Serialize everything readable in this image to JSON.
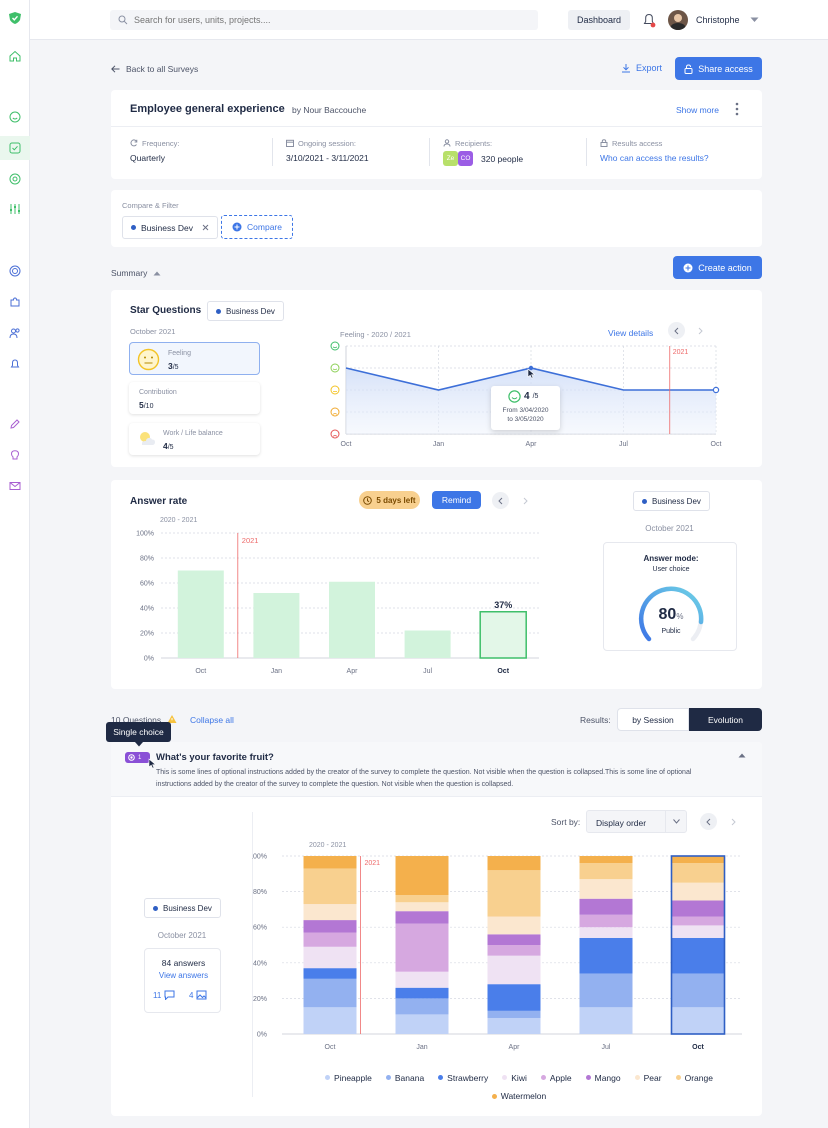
{
  "topbar": {
    "search_placeholder": "Search for users, units, projects....",
    "dashboard": "Dashboard",
    "user_name": "Christophe"
  },
  "nav": {
    "back": "Back to all Surveys",
    "export": "Export",
    "share": "Share access"
  },
  "survey": {
    "title": "Employee general experience",
    "author": "by Nour Baccouche",
    "show_more": "Show more",
    "frequency_label": "Frequency:",
    "frequency": "Quarterly",
    "session_label": "Ongoing session:",
    "session": "3/10/2021 - 3/11/2021",
    "recipients_label": "Recipients:",
    "recipients": "320 people",
    "avatar1": "Ze",
    "avatar2": "CO",
    "access_label": "Results access",
    "access_link": "Who can access the results?"
  },
  "filter": {
    "label": "Compare & Filter",
    "chip": "Business Dev",
    "compare": "Compare"
  },
  "summary": {
    "label": "Summary",
    "create_action": "Create action"
  },
  "star": {
    "title": "Star Questions",
    "chip": "Business Dev",
    "period": "October 2021",
    "items": [
      {
        "label": "Feeling",
        "score": "3",
        "of": "/5"
      },
      {
        "label": "Contribution",
        "score": "5",
        "of": "/10"
      },
      {
        "label": "Work / Life balance",
        "score": "4",
        "of": "/5"
      }
    ],
    "chart_title": "Feeling - 2020 / 2021",
    "view_details": "View details",
    "marker": "2021",
    "tooltip_score": "4",
    "tooltip_of": "/5",
    "tooltip_from": "From 3/04/2020",
    "tooltip_to": "to 3/05/2020"
  },
  "answer_rate": {
    "title": "Answer rate",
    "days_left": "5 days left",
    "remind": "Remind",
    "period_label": "2020 - 2021",
    "marker": "2021",
    "chip": "Business Dev",
    "month": "October 2021",
    "mode_title": "Answer mode:",
    "mode_value": "User choice",
    "gauge_value": "80",
    "gauge_unit": "%",
    "gauge_label": "Public"
  },
  "questions": {
    "count": "10 Questions",
    "collapse": "Collapse all",
    "results_label": "Results:",
    "by_session": "by Session",
    "evolution": "Evolution",
    "tooltip": "Single choice",
    "q_num": "1",
    "q_title": "What's your favorite fruit?",
    "q_desc": "This is some lines of optional instructions added by the creator of the survey to complete the question. Not visible when the question is collapsed.This is some line of optional instructions added by the creator of the survey to complete the question. Not visible when the question is collapsed.",
    "chip": "Business Dev",
    "month": "October 2021",
    "answers": "84 answers",
    "view_answers": "View answers",
    "comments": "11",
    "images": "4",
    "sort_label": "Sort by:",
    "sort_value": "Display order",
    "period_label": "2020 - 2021",
    "marker": "2021"
  },
  "chart_data": [
    {
      "type": "line",
      "title": "Feeling - 2020 / 2021",
      "categories": [
        "Oct",
        "Jan",
        "Apr",
        "Jul",
        "Oct"
      ],
      "values": [
        4,
        3,
        4,
        3,
        3
      ],
      "ylim": [
        1,
        5
      ],
      "y_icons": [
        "very-happy",
        "happy",
        "neutral",
        "sad",
        "very-sad"
      ],
      "grid": true
    },
    {
      "type": "bar",
      "title": "Answer rate",
      "categories": [
        "Oct",
        "Jan",
        "Apr",
        "Jul",
        "Oct"
      ],
      "values": [
        70,
        52,
        61,
        22,
        37
      ],
      "labels": [
        "",
        "",
        "",
        "",
        "37%"
      ],
      "ylim": [
        0,
        100
      ],
      "yticks": [
        "0%",
        "20%",
        "40%",
        "60%",
        "80%",
        "100%"
      ],
      "highlight_index": 4
    },
    {
      "type": "bar",
      "stacked": true,
      "title": "What's your favorite fruit?",
      "categories": [
        "Oct",
        "Jan",
        "Apr",
        "Jul",
        "Oct"
      ],
      "yticks": [
        "0%",
        "20%",
        "40%",
        "60%",
        "80%",
        "100%"
      ],
      "ylim": [
        0,
        100
      ],
      "highlight_index": 4,
      "series": [
        {
          "name": "Pineapple",
          "color": "#c0d2f7",
          "values": [
            15,
            11,
            9,
            15,
            15
          ]
        },
        {
          "name": "Banana",
          "color": "#93b1f0",
          "values": [
            16,
            9,
            4,
            19,
            19
          ]
        },
        {
          "name": "Strawberry",
          "color": "#4a7eea",
          "values": [
            6,
            6,
            15,
            20,
            20
          ]
        },
        {
          "name": "Kiwi",
          "color": "#efe2f3",
          "values": [
            12,
            9,
            16,
            6,
            7
          ]
        },
        {
          "name": "Apple",
          "color": "#d6a8e0",
          "values": [
            8,
            27,
            6,
            7,
            5
          ]
        },
        {
          "name": "Mango",
          "color": "#b377d4",
          "values": [
            7,
            7,
            6,
            9,
            9
          ]
        },
        {
          "name": "Pear",
          "color": "#fbe7cf",
          "values": [
            9,
            5,
            10,
            11,
            10
          ]
        },
        {
          "name": "Orange",
          "color": "#f8d08f",
          "values": [
            20,
            4,
            26,
            9,
            11
          ]
        },
        {
          "name": "Watermelon",
          "color": "#f4b04c",
          "values": [
            7,
            22,
            8,
            4,
            4
          ]
        }
      ]
    }
  ]
}
